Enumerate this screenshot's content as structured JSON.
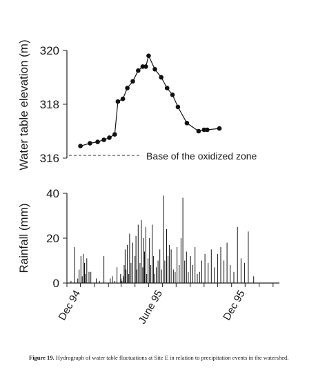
{
  "chart_data": [
    {
      "type": "line",
      "ylabel": "Water table elevation (m)",
      "ylim": [
        316,
        320
      ],
      "yticks": [
        "316",
        "318",
        "320"
      ],
      "reference_line": {
        "y": 316.1,
        "label": "Base of the oxidized zone",
        "style": "dashed"
      },
      "marker": "filled-circle",
      "series": [
        {
          "x": [
            "1994-12-01",
            "1994-12-22",
            "1995-01-08",
            "1995-01-22",
            "1995-02-03",
            "1995-02-15",
            "1995-02-22",
            "1995-03-05",
            "1995-03-15",
            "1995-03-27",
            "1995-04-08",
            "1995-04-18",
            "1995-04-25",
            "1995-05-01",
            "1995-05-15",
            "1995-05-29",
            "1995-06-11",
            "1995-06-23",
            "1995-07-05",
            "1995-07-25",
            "1995-08-20",
            "1995-09-01",
            "1995-09-08",
            "1995-10-05"
          ],
          "y": [
            316.45,
            316.55,
            316.6,
            316.68,
            316.76,
            316.88,
            318.1,
            318.2,
            318.6,
            318.85,
            319.25,
            319.4,
            319.4,
            319.8,
            319.3,
            319.0,
            318.6,
            318.35,
            317.9,
            317.3,
            317.0,
            317.05,
            317.05,
            317.1
          ]
        }
      ]
    },
    {
      "type": "bar",
      "ylabel": "Rainfall (mm)",
      "ylim": [
        0,
        40
      ],
      "yticks": [
        "0",
        "20",
        "40"
      ],
      "xticks": [
        "Dec 94",
        "June 95",
        "Dec 95"
      ],
      "x_range": [
        "1994-11-01",
        "1996-02-15"
      ],
      "series": [
        {
          "x": [
            "1994-11-10",
            "1994-11-18",
            "1994-11-25",
            "1994-11-28",
            "1994-12-02",
            "1994-12-05",
            "1994-12-07",
            "1994-12-10",
            "1994-12-12",
            "1994-12-15",
            "1994-12-20",
            "1994-12-24",
            "1995-01-05",
            "1995-01-12",
            "1995-01-22",
            "1995-02-05",
            "1995-02-10",
            "1995-02-15",
            "1995-02-20",
            "1995-02-28",
            "1995-03-01",
            "1995-03-03",
            "1995-03-06",
            "1995-03-08",
            "1995-03-10",
            "1995-03-12",
            "1995-03-15",
            "1995-03-18",
            "1995-03-20",
            "1995-03-23",
            "1995-03-27",
            "1995-04-01",
            "1995-04-03",
            "1995-04-05",
            "1995-04-08",
            "1995-04-12",
            "1995-04-15",
            "1995-04-18",
            "1995-04-20",
            "1995-04-22",
            "1995-04-25",
            "1995-04-27",
            "1995-04-30",
            "1995-05-03",
            "1995-05-06",
            "1995-05-09",
            "1995-05-12",
            "1995-05-15",
            "1995-05-18",
            "1995-05-22",
            "1995-05-26",
            "1995-05-30",
            "1995-06-03",
            "1995-06-06",
            "1995-06-10",
            "1995-06-13",
            "1995-06-16",
            "1995-06-20",
            "1995-06-25",
            "1995-06-29",
            "1995-07-03",
            "1995-07-08",
            "1995-07-12",
            "1995-07-16",
            "1995-07-20",
            "1995-07-24",
            "1995-07-28",
            "1995-08-02",
            "1995-08-07",
            "1995-08-12",
            "1995-08-17",
            "1995-08-22",
            "1995-08-27",
            "1995-09-03",
            "1995-09-10",
            "1995-09-17",
            "1995-09-24",
            "1995-10-01",
            "1995-10-08",
            "1995-10-15",
            "1995-10-22",
            "1995-10-29",
            "1995-11-06",
            "1995-11-14",
            "1995-11-22",
            "1995-11-30",
            "1995-12-08",
            "1995-12-20"
          ],
          "values": [
            1,
            16,
            2,
            6,
            12,
            3,
            13,
            9,
            4,
            11,
            5,
            5,
            2,
            1,
            12,
            2,
            3,
            1,
            7,
            4,
            2,
            1,
            3,
            8,
            15,
            6,
            17,
            4,
            22,
            9,
            18,
            12,
            21,
            6,
            26,
            9,
            28,
            7,
            20,
            14,
            25,
            4,
            11,
            20,
            8,
            26,
            12,
            4,
            7,
            10,
            15,
            6,
            39,
            10,
            24,
            12,
            17,
            15,
            6,
            5,
            16,
            8,
            20,
            38,
            10,
            14,
            5,
            12,
            8,
            16,
            4,
            5,
            10,
            13,
            9,
            15,
            7,
            13,
            16,
            10,
            18,
            8,
            5,
            25,
            11,
            9,
            23,
            3
          ]
        }
      ]
    }
  ],
  "caption": {
    "label": "Figure 19.",
    "text": " Hydrograph of water table fluctuations at Site E in relation to precipitation events in the watershed."
  }
}
